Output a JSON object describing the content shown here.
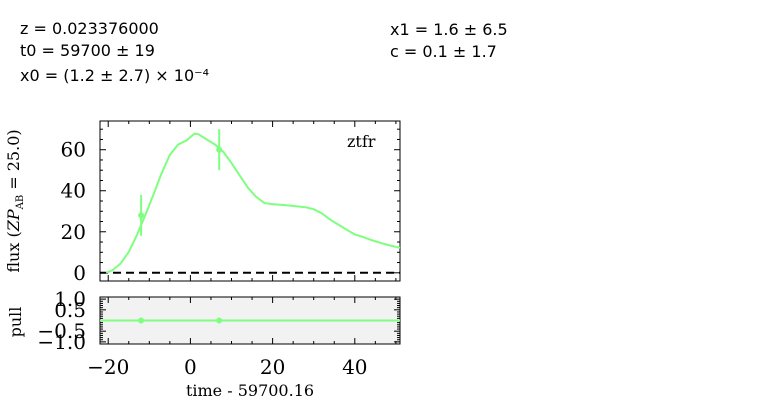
{
  "fit_params": {
    "z": "z = 0.023376000",
    "t0": "t0 = 59700 ± 19",
    "x0": "x0 = (1.2 ± 2.7) × 10⁻⁴",
    "x1": "x1 = 1.6 ± 6.5",
    "c": "c = 0.1 ± 1.7"
  },
  "chart_data": [
    {
      "type": "line",
      "panel": "flux",
      "band_label": "ztfr",
      "xlabel": "",
      "ylabel": "flux (ZP_AB = 25.0)",
      "xlim": [
        -22,
        51
      ],
      "ylim": [
        -4,
        74
      ],
      "xticks": [
        -20,
        0,
        20,
        40
      ],
      "yticks": [
        0,
        20,
        40,
        60
      ],
      "ytick_labels": [
        "0",
        "20",
        "40",
        "60"
      ],
      "model_color": "#7fff7f",
      "model_curve": {
        "x": [
          -20.5,
          -19,
          -17,
          -15,
          -13,
          -11,
          -9,
          -7,
          -5,
          -3,
          -1,
          1,
          2,
          4,
          6,
          8,
          10,
          12,
          14,
          16,
          18,
          20,
          24,
          28,
          30,
          32,
          34,
          36,
          38,
          40,
          42,
          44,
          46,
          48,
          51
        ],
        "y": [
          0,
          1.2,
          4.5,
          10.2,
          18.5,
          28,
          38,
          48.5,
          57.5,
          62.5,
          64.5,
          67.8,
          67.5,
          65,
          62.5,
          59,
          53.5,
          47.5,
          41.5,
          37,
          34,
          33.5,
          32.8,
          32,
          31,
          29,
          26,
          23.5,
          21,
          18.7,
          17.5,
          16,
          14.7,
          13.6,
          12.2
        ]
      },
      "points": [
        {
          "x": -12,
          "y": 28,
          "yerr": 10
        },
        {
          "x": 7,
          "y": 60,
          "yerr": 10
        }
      ],
      "zero_line": 0
    },
    {
      "type": "scatter",
      "panel": "pull",
      "xlabel": "time - 59700.16",
      "ylabel": "pull",
      "xlim": [
        -22,
        51
      ],
      "ylim": [
        -1.1,
        1.1
      ],
      "xticks": [
        -20,
        0,
        20,
        40
      ],
      "xtick_labels": [
        "−20",
        "0",
        "20",
        "40"
      ],
      "yticks": [
        1.0,
        0.5,
        -0.5,
        -1.0
      ],
      "ytick_labels": [
        "1.0",
        "0.5",
        "−0.5",
        "−1.0"
      ],
      "zero_line_color": "#7fff7f",
      "points": [
        {
          "x": -12,
          "y": 0
        },
        {
          "x": 7,
          "y": 0
        }
      ]
    }
  ]
}
